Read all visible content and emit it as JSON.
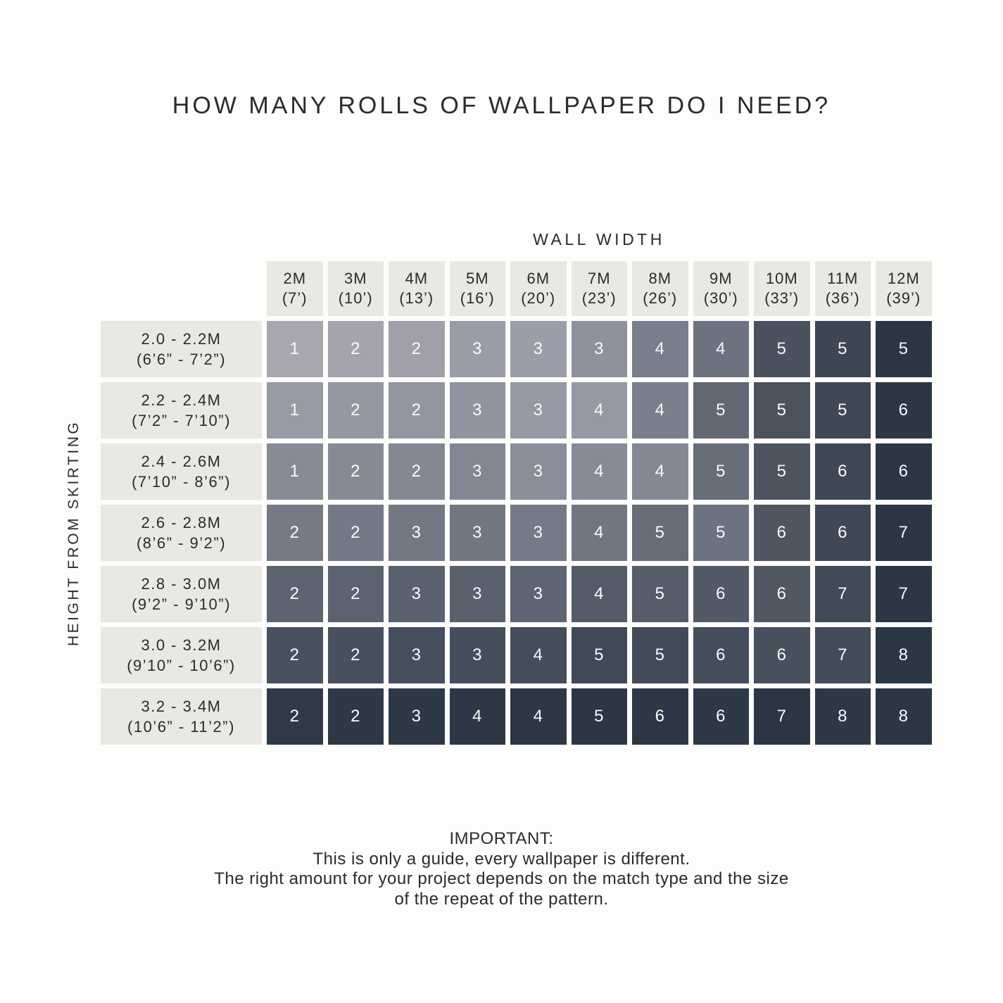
{
  "chart_data": {
    "type": "heatmap",
    "title": "HOW MANY ROLLS OF WALLPAPER DO I NEED?",
    "x_axis_label": "WALL WIDTH",
    "y_axis_label": "HEIGHT FROM SKIRTING",
    "columns": [
      {
        "metric": "2M",
        "imperial": "(7’)"
      },
      {
        "metric": "3M",
        "imperial": "(10’)"
      },
      {
        "metric": "4M",
        "imperial": "(13’)"
      },
      {
        "metric": "5M",
        "imperial": "(16’)"
      },
      {
        "metric": "6M",
        "imperial": "(20’)"
      },
      {
        "metric": "7M",
        "imperial": "(23’)"
      },
      {
        "metric": "8M",
        "imperial": "(26’)"
      },
      {
        "metric": "9M",
        "imperial": "(30’)"
      },
      {
        "metric": "10M",
        "imperial": "(33’)"
      },
      {
        "metric": "11M",
        "imperial": "(36’)"
      },
      {
        "metric": "12M",
        "imperial": "(39’)"
      }
    ],
    "rows": [
      {
        "metric": "2.0 - 2.2M",
        "imperial": "(6’6” - 7’2”)"
      },
      {
        "metric": "2.2 - 2.4M",
        "imperial": "(7’2” - 7’10”)"
      },
      {
        "metric": "2.4 - 2.6M",
        "imperial": "(7’10” - 8’6”)"
      },
      {
        "metric": "2.6 - 2.8M",
        "imperial": "(8’6” - 9’2”)"
      },
      {
        "metric": "2.8 - 3.0M",
        "imperial": "(9’2” - 9’10”)"
      },
      {
        "metric": "3.0 - 3.2M",
        "imperial": "(9’10” - 10’6”)"
      },
      {
        "metric": "3.2 - 3.4M",
        "imperial": "(10’6” - 11’2”)"
      }
    ],
    "values": [
      [
        1,
        2,
        2,
        3,
        3,
        3,
        4,
        4,
        5,
        5,
        5
      ],
      [
        1,
        2,
        2,
        3,
        3,
        4,
        4,
        5,
        5,
        5,
        6
      ],
      [
        1,
        2,
        2,
        3,
        3,
        4,
        4,
        5,
        5,
        6,
        6
      ],
      [
        2,
        2,
        3,
        3,
        3,
        4,
        5,
        5,
        6,
        6,
        7
      ],
      [
        2,
        2,
        3,
        3,
        3,
        4,
        5,
        6,
        6,
        7,
        7
      ],
      [
        2,
        2,
        3,
        3,
        4,
        5,
        5,
        6,
        6,
        7,
        8
      ],
      [
        2,
        2,
        3,
        4,
        4,
        5,
        6,
        6,
        7,
        8,
        8
      ]
    ],
    "cell_colors": [
      [
        "#A7A7B0",
        "#A3A4AE",
        "#9FA0AA",
        "#9A9CA7",
        "#9B9DA8",
        "#8F929D",
        "#787E8B",
        "#6D7380",
        "#4A525F",
        "#3D4754",
        "#2B3744"
      ],
      [
        "#989BA5",
        "#9598A3",
        "#9396A1",
        "#9194A0",
        "#979AA5",
        "#9599A4",
        "#7A7F8D",
        "#626975",
        "#4B535F",
        "#3E4855",
        "#2B3744"
      ],
      [
        "#888B96",
        "#868A95",
        "#848893",
        "#838794",
        "#8A8E99",
        "#878B97",
        "#848894",
        "#666E7A",
        "#4C545F",
        "#3E4855",
        "#2B3744"
      ],
      [
        "#767A87",
        "#747987",
        "#737885",
        "#727784",
        "#757A88",
        "#717683",
        "#666D79",
        "#6B7280",
        "#4F5661",
        "#3F4956",
        "#2B3744"
      ],
      [
        "#5C6371",
        "#5B6270",
        "#5A616F",
        "#59606E",
        "#5D6473",
        "#535B69",
        "#555C6A",
        "#525A67",
        "#505864",
        "#414B58",
        "#2B3744"
      ],
      [
        "#485160",
        "#47505F",
        "#464F5E",
        "#454E5D",
        "#444D5C",
        "#3F4957",
        "#414B59",
        "#444D5B",
        "#47505D",
        "#434D5A",
        "#2B3744"
      ],
      [
        "#2E3A47",
        "#2D3946",
        "#2D3946",
        "#2C3845",
        "#2C3845",
        "#2B3744",
        "#2C3845",
        "#2D3946",
        "#2A3643",
        "#2D3946",
        "#2B3744"
      ]
    ],
    "grid": "off",
    "legend": "none"
  },
  "footer": {
    "heading": "IMPORTANT:",
    "line1": "This is only a guide, every wallpaper is different.",
    "line2": "The right amount for your project depends on the match type and the size",
    "line3": "of the repeat of the pattern."
  },
  "colors": {
    "page_bg": "#FDFDFC",
    "label_cell_bg": "#E9E8E5",
    "dark_text": "#2B2B2B",
    "cell_text": "#FAFAFA",
    "heat_lightest": "#A7A7B0",
    "heat_darkest": "#2B3744"
  }
}
